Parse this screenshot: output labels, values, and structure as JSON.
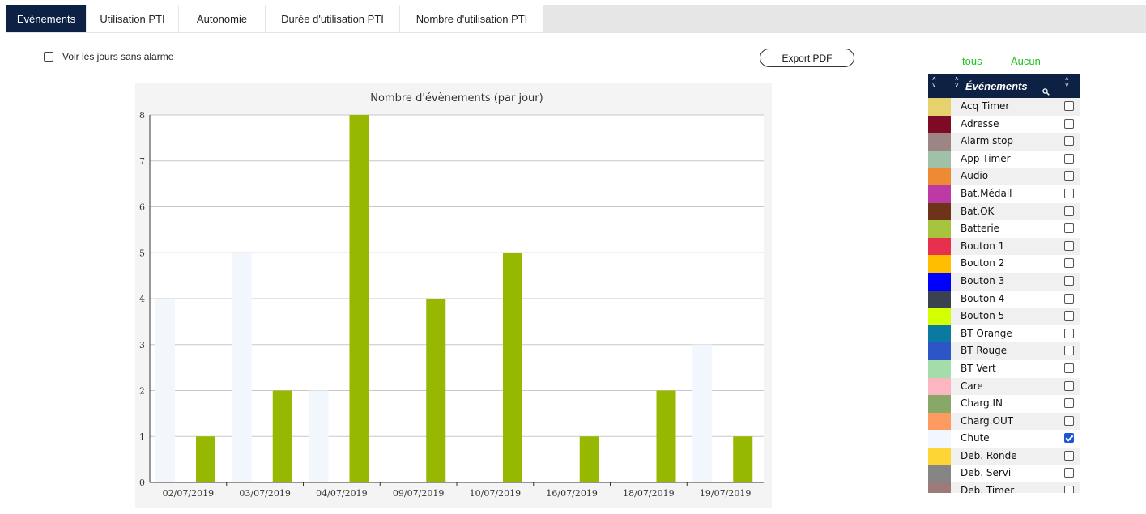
{
  "tabs": [
    {
      "label": "Evènements",
      "active": true
    },
    {
      "label": "Utilisation PTI",
      "active": false
    },
    {
      "label": "Autonomie",
      "active": false
    },
    {
      "label": "Durée d'utilisation PTI",
      "active": false
    },
    {
      "label": "Nombre d'utilisation PTI",
      "active": false
    }
  ],
  "show_days_label": "Voir les jours sans alarme",
  "show_days_checked": false,
  "export_label": "Export PDF",
  "select_all": "tous",
  "select_none": "Aucun",
  "panel_header": "Événements",
  "events": [
    {
      "label": "Acq Timer",
      "color": "#e5d26c",
      "checked": false
    },
    {
      "label": "Adresse",
      "color": "#7e0a25",
      "checked": false
    },
    {
      "label": "Alarm stop",
      "color": "#9b8585",
      "checked": false
    },
    {
      "label": "App Timer",
      "color": "#9ec1a8",
      "checked": false
    },
    {
      "label": "Audio",
      "color": "#ee8a33",
      "checked": false
    },
    {
      "label": "Bat.Médail",
      "color": "#bd3aa6",
      "checked": false
    },
    {
      "label": "Bat.OK",
      "color": "#6d3419",
      "checked": false
    },
    {
      "label": "Batterie",
      "color": "#a6c43d",
      "checked": false
    },
    {
      "label": "Bouton 1",
      "color": "#e6304e",
      "checked": false
    },
    {
      "label": "Bouton 2",
      "color": "#ffbf00",
      "checked": false
    },
    {
      "label": "Bouton 3",
      "color": "#0000ff",
      "checked": false
    },
    {
      "label": "Bouton 4",
      "color": "#39424e",
      "checked": false
    },
    {
      "label": "Bouton 5",
      "color": "#d4ff00",
      "checked": false
    },
    {
      "label": "BT Orange",
      "color": "#0a7aa0",
      "checked": false
    },
    {
      "label": "BT Rouge",
      "color": "#2c55c5",
      "checked": false
    },
    {
      "label": "BT Vert",
      "color": "#a4dcaa",
      "checked": false
    },
    {
      "label": "Care",
      "color": "#fbb6c1",
      "checked": false
    },
    {
      "label": "Charg.IN",
      "color": "#88a868",
      "checked": false
    },
    {
      "label": "Charg.OUT",
      "color": "#fd9a5f",
      "checked": false
    },
    {
      "label": "Chute",
      "color": "#f2f7fd",
      "checked": true
    },
    {
      "label": "Deb. Ronde",
      "color": "#fdd535",
      "checked": false
    },
    {
      "label": "Deb. Servi",
      "color": "#858585",
      "checked": false
    },
    {
      "label": "Deb. Timer",
      "color": "#9c7a7a",
      "checked": false
    }
  ],
  "chart_data": {
    "type": "bar",
    "title": "Nombre d'évènements (par jour)",
    "categories": [
      "02/07/2019",
      "03/07/2019",
      "04/07/2019",
      "09/07/2019",
      "10/07/2019",
      "16/07/2019",
      "18/07/2019",
      "19/07/2019"
    ],
    "series": [
      {
        "color": "#f2f7fd",
        "values": [
          4,
          5,
          2,
          0,
          0,
          0,
          0,
          3
        ]
      },
      {
        "color": "#97b800",
        "values": [
          1,
          2,
          8,
          4,
          5,
          1,
          2,
          1
        ]
      }
    ],
    "ylim": [
      0,
      8
    ],
    "yticks": [
      "0",
      "1",
      "2",
      "3",
      "4",
      "5",
      "6",
      "7",
      "8"
    ],
    "grid": true
  }
}
